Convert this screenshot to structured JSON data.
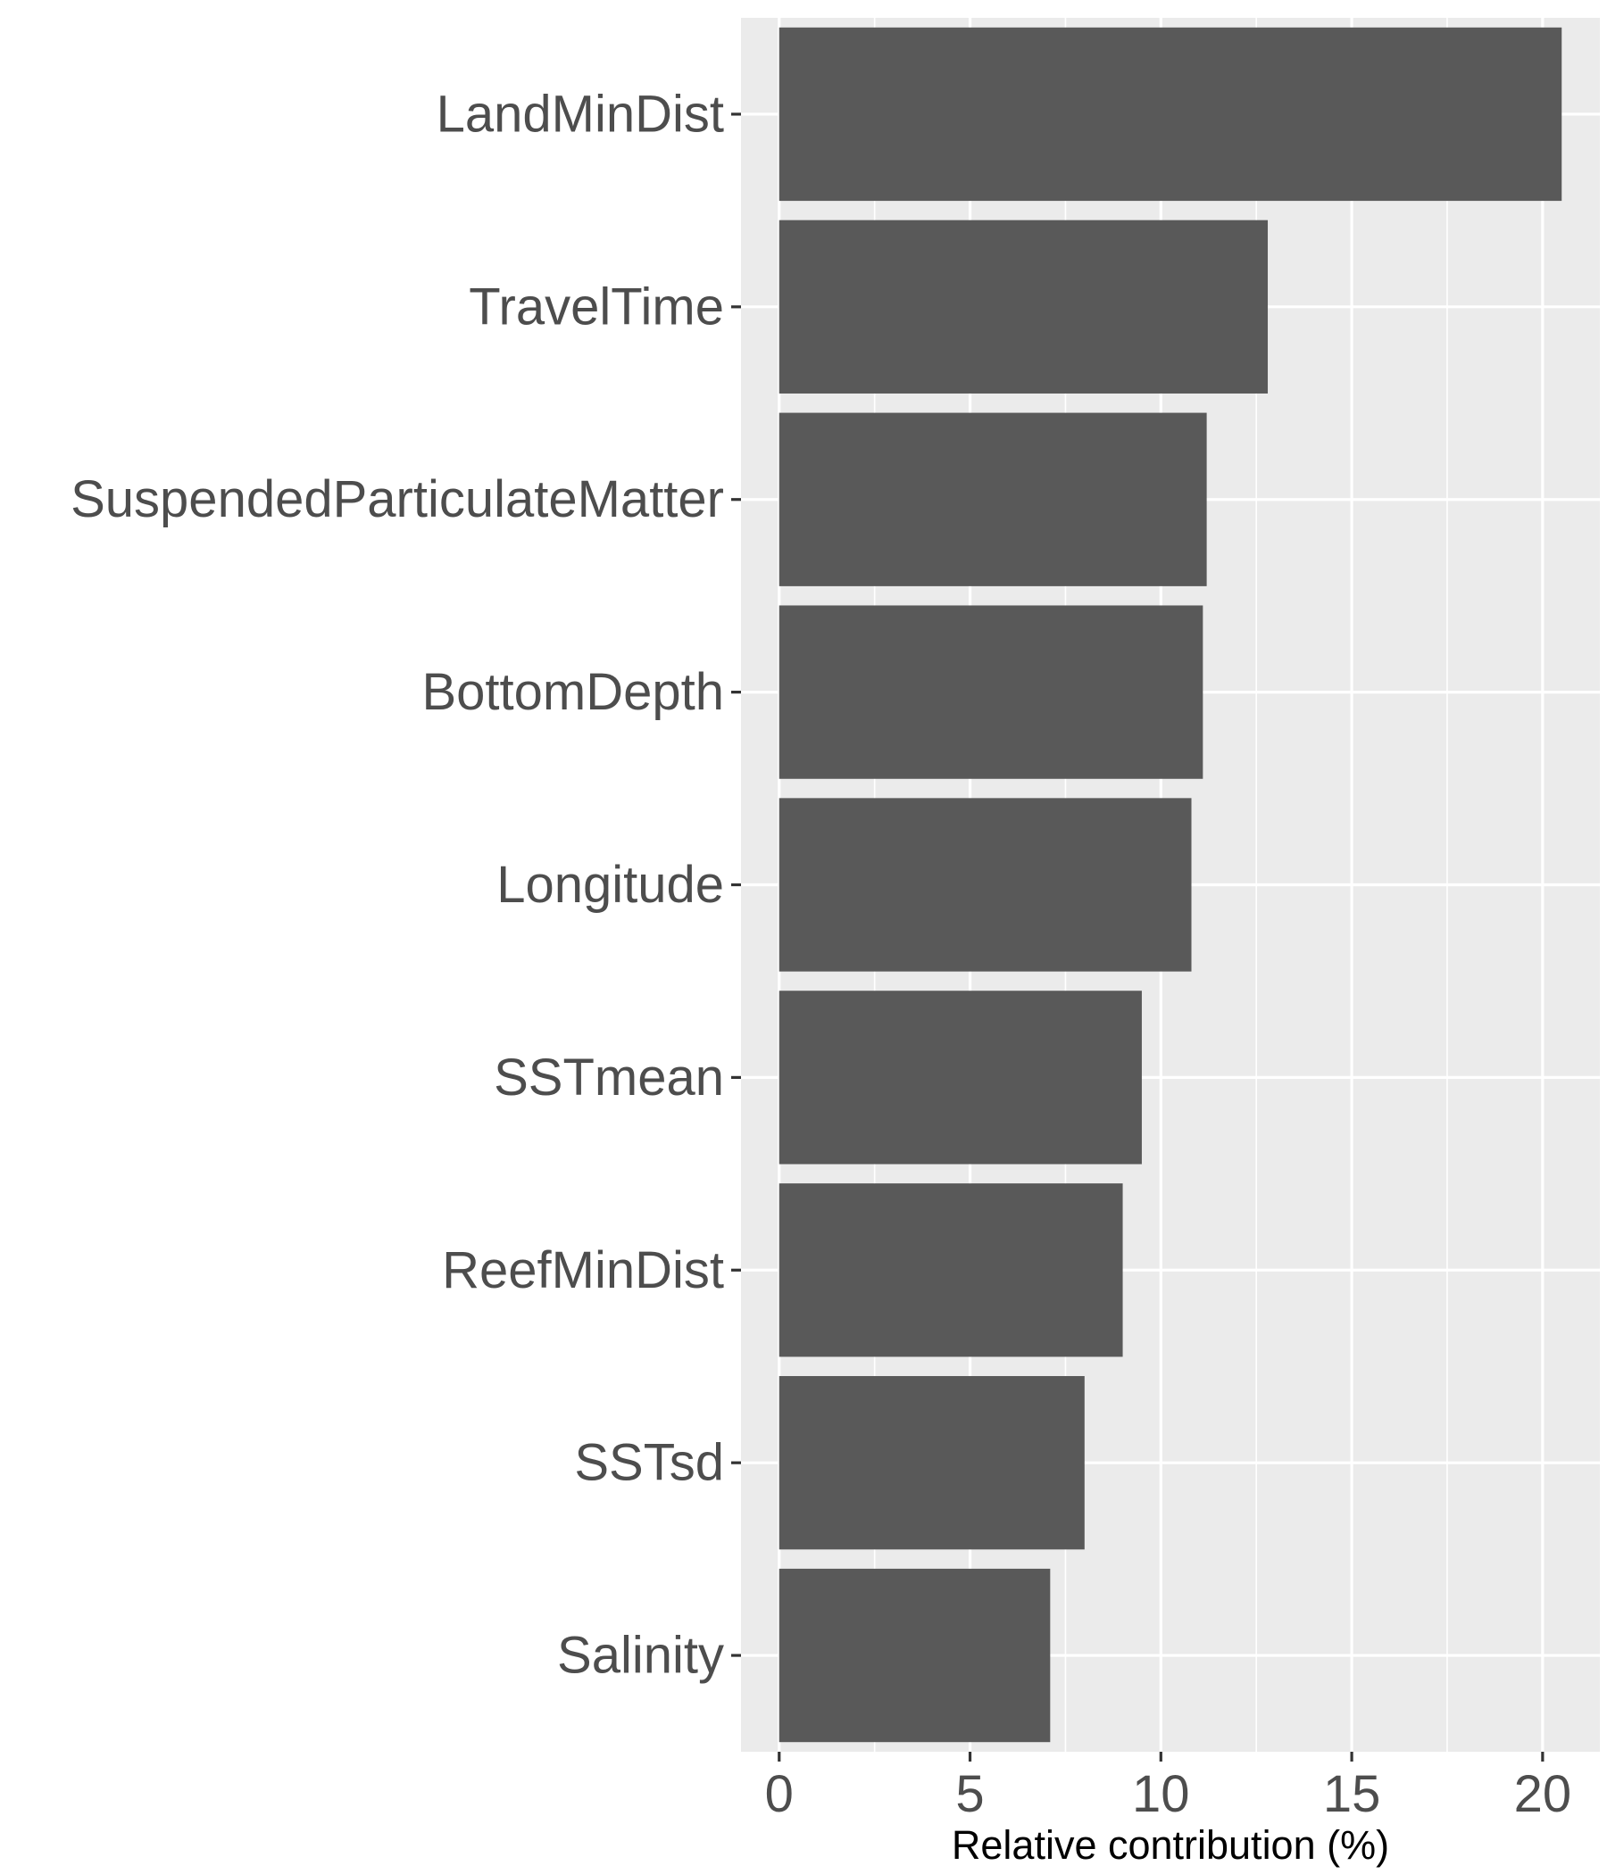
{
  "chart_data": {
    "type": "bar",
    "orientation": "horizontal",
    "categories": [
      "LandMinDist",
      "TravelTime",
      "SuspendedParticulateMatter",
      "BottomDepth",
      "Longitude",
      "SSTmean",
      "ReefMinDist",
      "SSTsd",
      "Salinity"
    ],
    "values": [
      20.5,
      12.8,
      11.2,
      11.1,
      10.8,
      9.5,
      9.0,
      8.0,
      7.1
    ],
    "title": "",
    "xlabel": "Relative contribution (%)",
    "ylabel": "",
    "xlim": [
      -1.0,
      21.5
    ],
    "xticks": [
      0,
      5,
      10,
      15,
      20
    ],
    "tick_labels": [
      "0",
      "5",
      "10",
      "15",
      "20"
    ],
    "grid": true,
    "legend": "none",
    "colors": {
      "bar": "#595959",
      "panel": "#ebebeb",
      "grid_major": "#ffffff",
      "text": "#4d4d4d",
      "axis_title": "#000000"
    }
  }
}
